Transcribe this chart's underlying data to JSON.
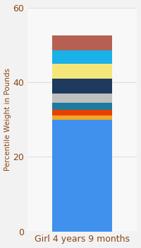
{
  "category": "Girl 4 years 9 months",
  "segments": [
    {
      "value": 30.0,
      "color": "#4090ee"
    },
    {
      "value": 1.0,
      "color": "#f5a623"
    },
    {
      "value": 1.5,
      "color": "#e84000"
    },
    {
      "value": 2.0,
      "color": "#1e7a9e"
    },
    {
      "value": 2.5,
      "color": "#c0bfbf"
    },
    {
      "value": 4.0,
      "color": "#1e3a5f"
    },
    {
      "value": 4.0,
      "color": "#f5e67a"
    },
    {
      "value": 3.5,
      "color": "#1ab0e8"
    },
    {
      "value": 4.0,
      "color": "#b56050"
    }
  ],
  "ylabel": "Percentile Weight in Pounds",
  "ylim": [
    0,
    60
  ],
  "yticks": [
    0,
    20,
    40,
    60
  ],
  "background_color": "#f2f2f2",
  "plot_bg_color": "#f8f8f8",
  "bar_width": 0.55,
  "xlabel_fontsize": 9,
  "ylabel_fontsize": 7.5,
  "tick_fontsize": 9,
  "xlabel_color": "#8B4513",
  "ylabel_color": "#8B4513",
  "tick_color": "#8B4513",
  "grid_color": "#e0e0e0"
}
